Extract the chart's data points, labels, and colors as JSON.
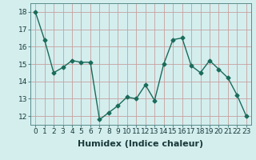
{
  "x": [
    0,
    1,
    2,
    3,
    4,
    5,
    6,
    7,
    8,
    9,
    10,
    11,
    12,
    13,
    14,
    15,
    16,
    17,
    18,
    19,
    20,
    21,
    22,
    23
  ],
  "y": [
    18.0,
    16.4,
    14.5,
    14.8,
    15.2,
    15.1,
    15.1,
    11.8,
    12.2,
    12.6,
    13.1,
    13.0,
    13.8,
    12.9,
    15.0,
    16.4,
    16.5,
    14.9,
    14.5,
    15.2,
    14.7,
    14.2,
    13.2,
    12.0
  ],
  "line_color": "#1a6b5a",
  "marker": "D",
  "markersize": 2.5,
  "linewidth": 1.0,
  "xlabel": "Humidex (Indice chaleur)",
  "ylim": [
    11.5,
    18.5
  ],
  "xlim": [
    -0.5,
    23.5
  ],
  "background_color": "#d4eeee",
  "grid_color": "#c8a0a0",
  "xlabel_fontsize": 8,
  "tick_fontsize": 6.5,
  "yticks": [
    12,
    13,
    14,
    15,
    16,
    17,
    18
  ],
  "xtick_labels": [
    "0",
    "1",
    "2",
    "3",
    "4",
    "5",
    "6",
    "7",
    "8",
    "9",
    "10",
    "11",
    "12",
    "13",
    "14",
    "15",
    "16",
    "17",
    "18",
    "19",
    "20",
    "21",
    "22",
    "23"
  ]
}
